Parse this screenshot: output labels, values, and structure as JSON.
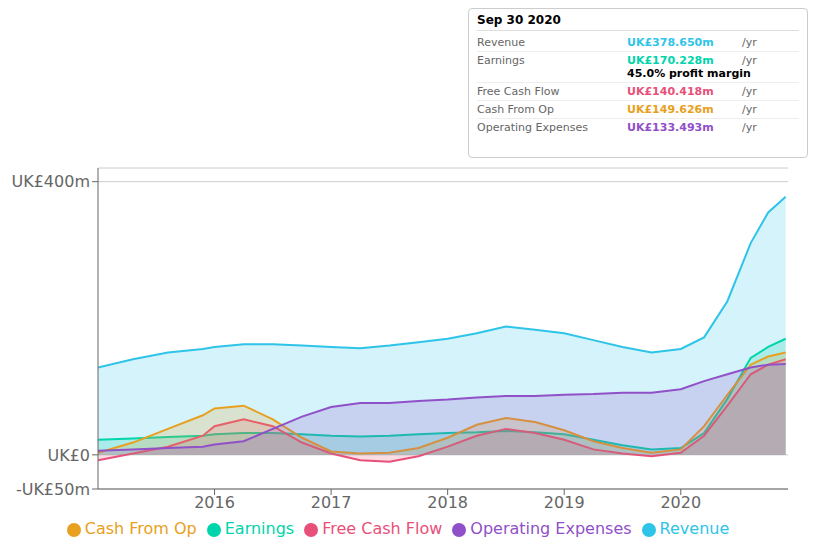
{
  "chart_data": {
    "type": "area",
    "xlim": [
      2015.0,
      2020.92
    ],
    "xticks": [
      2016,
      2017,
      2018,
      2019,
      2020
    ],
    "ylim": [
      -50,
      420
    ],
    "yticks": [
      {
        "value": -50,
        "label": "-UK£50m"
      },
      {
        "value": 0,
        "label": "UK£0"
      },
      {
        "value": 400,
        "label": "UK£400m"
      }
    ],
    "grid": true,
    "legend": "bottom",
    "x": [
      2015.0,
      2015.3,
      2015.6,
      2015.9,
      2016.0,
      2016.25,
      2016.5,
      2016.75,
      2017.0,
      2017.25,
      2017.5,
      2017.75,
      2018.0,
      2018.25,
      2018.5,
      2018.75,
      2019.0,
      2019.25,
      2019.5,
      2019.75,
      2020.0,
      2020.2,
      2020.4,
      2020.6,
      2020.75,
      2020.9
    ],
    "series": [
      {
        "name": "Revenue",
        "color": "#2ec4e8",
        "values": [
          128,
          140,
          150,
          155,
          158,
          162,
          162,
          160,
          158,
          156,
          160,
          165,
          170,
          178,
          188,
          183,
          178,
          168,
          158,
          150,
          155,
          172,
          225,
          310,
          355,
          378
        ]
      },
      {
        "name": "Earnings",
        "color": "#00d4aa",
        "values": [
          22,
          24,
          26,
          28,
          30,
          32,
          32,
          30,
          28,
          27,
          28,
          30,
          32,
          33,
          35,
          33,
          30,
          22,
          14,
          8,
          10,
          32,
          82,
          142,
          158,
          170
        ]
      },
      {
        "name": "Free Cash Flow",
        "color": "#e8507a",
        "values": [
          -8,
          2,
          12,
          28,
          42,
          52,
          42,
          18,
          2,
          -8,
          -10,
          -2,
          12,
          28,
          38,
          32,
          22,
          8,
          2,
          -2,
          3,
          28,
          72,
          118,
          132,
          140
        ]
      },
      {
        "name": "Cash From Op",
        "color": "#e8a020",
        "values": [
          3,
          18,
          38,
          58,
          68,
          72,
          52,
          25,
          5,
          2,
          3,
          10,
          25,
          44,
          54,
          48,
          36,
          20,
          10,
          3,
          8,
          42,
          88,
          132,
          144,
          150
        ]
      },
      {
        "name": "Operating Expenses",
        "color": "#9050c8",
        "values": [
          6,
          8,
          10,
          12,
          15,
          20,
          38,
          56,
          70,
          76,
          76,
          79,
          81,
          84,
          86,
          86,
          88,
          89,
          91,
          91,
          96,
          108,
          118,
          128,
          132,
          133
        ]
      }
    ],
    "annotations": [
      {
        "title": "Sep 30 2020",
        "rows": [
          {
            "label": "Revenue",
            "value": "UK£378.650m",
            "unit": "/yr"
          },
          {
            "label": "Earnings",
            "value": "UK£170.228m",
            "unit": "/yr",
            "note": "45.0% profit margin"
          },
          {
            "label": "Free Cash Flow",
            "value": "UK£140.418m",
            "unit": "/yr"
          },
          {
            "label": "Cash From Op",
            "value": "UK£149.626m",
            "unit": "/yr"
          },
          {
            "label": "Operating Expenses",
            "value": "UK£133.493m",
            "unit": "/yr"
          }
        ]
      }
    ]
  }
}
